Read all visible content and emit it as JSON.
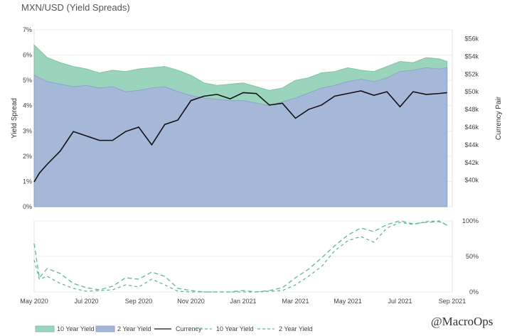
{
  "chart_data": [
    {
      "type": "area",
      "title": "MXN/USD (Yield Spreads)",
      "ylabel": "Yield Spread",
      "y2label": "Currency Pair",
      "ylim": [
        0,
        7
      ],
      "y2lim": [
        37000,
        57000
      ],
      "yticks": [
        "0%",
        "1%",
        "2%",
        "3%",
        "4%",
        "5%",
        "6%",
        "7%"
      ],
      "y2ticks": [
        "$40k",
        "$42k",
        "$44k",
        "$46k",
        "$48k",
        "$50k",
        "$52k",
        "$54k",
        "$56k"
      ],
      "xticks": [
        "May 2020",
        "Jul 2020",
        "Sep 2020",
        "Nov 2020",
        "Jan 2021",
        "Mar 2021",
        "May 2021",
        "Jul 2021",
        "Sep 2021"
      ],
      "x": [
        0,
        0.2,
        0.5,
        1,
        1.5,
        2,
        2.5,
        3,
        3.5,
        4,
        4.5,
        5,
        5.5,
        6,
        6.5,
        7,
        7.5,
        8,
        8.5,
        9,
        9.5,
        10,
        10.5,
        11,
        11.5,
        12,
        12.5,
        13,
        13.5,
        14,
        14.5,
        15,
        15.5,
        15.8
      ],
      "series": [
        {
          "name": "10 Year Yield",
          "color": "#9bd4bc",
          "values": [
            6.4,
            6.2,
            5.9,
            5.7,
            5.55,
            5.45,
            5.3,
            5.4,
            5.35,
            5.45,
            5.5,
            5.55,
            5.4,
            5.2,
            4.9,
            4.8,
            4.85,
            4.9,
            4.75,
            4.6,
            4.7,
            5.0,
            5.1,
            5.3,
            5.35,
            5.5,
            5.4,
            5.35,
            5.55,
            5.75,
            5.7,
            5.9,
            5.85,
            5.75
          ]
        },
        {
          "name": "2 Year Yield",
          "color": "#a6b6d8",
          "values": [
            5.2,
            5.1,
            4.95,
            4.85,
            4.75,
            4.8,
            4.7,
            4.75,
            4.55,
            4.6,
            4.7,
            4.75,
            4.55,
            4.4,
            4.3,
            4.25,
            4.2,
            4.2,
            4.1,
            4.0,
            4.15,
            4.3,
            4.5,
            4.7,
            4.8,
            4.95,
            5.05,
            4.95,
            5.1,
            5.35,
            5.4,
            5.5,
            5.45,
            5.5
          ]
        },
        {
          "name": "Currency",
          "color": "#111111",
          "axis": "right",
          "values": [
            39800,
            40800,
            41800,
            43300,
            45500,
            45000,
            44500,
            44500,
            45500,
            46000,
            44000,
            46300,
            46800,
            49000,
            49500,
            49700,
            49200,
            49900,
            49800,
            48500,
            48700,
            47000,
            48000,
            48500,
            49500,
            49800,
            50100,
            49600,
            50000,
            48300,
            50000,
            49700,
            49800,
            49900
          ]
        }
      ]
    },
    {
      "type": "line",
      "ylim": [
        0,
        100
      ],
      "yticks": [
        "0%",
        "50%",
        "100%"
      ],
      "series": [
        {
          "name": "10 Year Yield",
          "color": "#5fb797",
          "values": [
            68,
            20,
            33,
            26,
            12,
            6,
            3,
            8,
            20,
            18,
            28,
            22,
            5,
            2,
            0,
            0,
            0,
            2,
            0,
            2,
            6,
            20,
            32,
            48,
            65,
            80,
            90,
            85,
            95,
            100,
            96,
            98,
            99,
            94
          ]
        },
        {
          "name": "2 Year Yield",
          "color": "#5fb797",
          "values": [
            45,
            18,
            22,
            12,
            5,
            1,
            2,
            3,
            10,
            7,
            18,
            10,
            1,
            0,
            0,
            0,
            0,
            0,
            0,
            1,
            2,
            10,
            22,
            36,
            58,
            72,
            78,
            70,
            90,
            98,
            95,
            99,
            100,
            94
          ]
        }
      ]
    }
  ],
  "legend": [
    "10 Year Yield",
    "2 Year Yield",
    "Currency",
    "10 Year Yield",
    "2 Year Yield"
  ],
  "watermark": "@MacroOps"
}
